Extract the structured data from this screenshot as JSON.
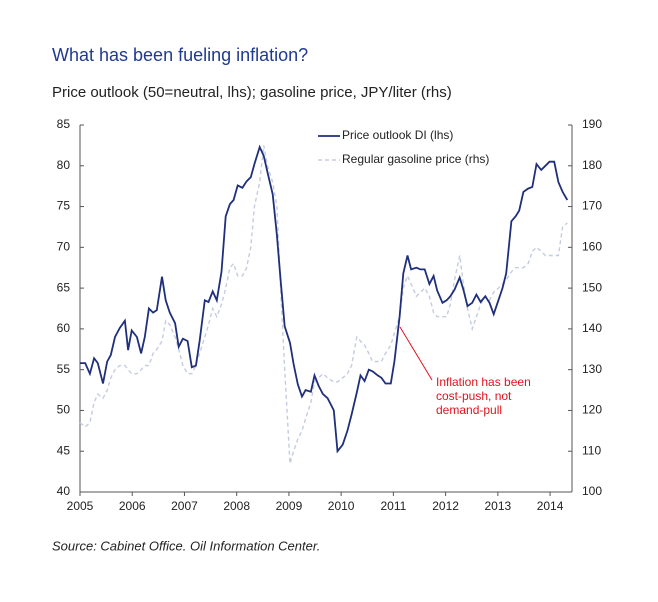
{
  "chart_data": {
    "type": "line",
    "title": "What has been fueling inflation?",
    "subtitle": "Price outlook (50=neutral, lhs); gasoline price, JPY/liter (rhs)",
    "source": "Source: Cabinet Office. Oil Information Center.",
    "annotation": [
      "Inflation has been",
      "cost-push, not",
      "demand-pull"
    ],
    "annotation_color": "#e0141e",
    "legend": "top",
    "x": [
      2005.0,
      2005.1,
      2005.19,
      2005.27,
      2005.34,
      2005.44,
      2005.52,
      2005.59,
      2005.67,
      2005.76,
      2005.86,
      2005.92,
      2005.99,
      2006.09,
      2006.17,
      2006.24,
      2006.32,
      2006.4,
      2006.47,
      2006.57,
      2006.64,
      2006.72,
      2006.82,
      2006.89,
      2006.97,
      2007.06,
      2007.14,
      2007.22,
      2007.29,
      2007.39,
      2007.46,
      2007.54,
      2007.62,
      2007.71,
      2007.79,
      2007.87,
      2007.94,
      2008.02,
      2008.11,
      2008.19,
      2008.27,
      2008.34,
      2008.44,
      2008.52,
      2008.59,
      2008.69,
      2008.77,
      2008.84,
      2008.92,
      2009.02,
      2009.09,
      2009.17,
      2009.25,
      2009.32,
      2009.42,
      2009.49,
      2009.57,
      2009.65,
      2009.74,
      2009.86,
      2009.93,
      2010.03,
      2010.12,
      2010.2,
      2010.3,
      2010.37,
      2010.45,
      2010.53,
      2010.6,
      2010.7,
      2010.77,
      2010.85,
      2010.95,
      2011.02,
      2011.12,
      2011.19,
      2011.27,
      2011.34,
      2011.44,
      2011.52,
      2011.6,
      2011.69,
      2011.77,
      2011.84,
      2011.94,
      2012.02,
      2012.09,
      2012.17,
      2012.27,
      2012.34,
      2012.42,
      2012.51,
      2012.59,
      2012.67,
      2012.76,
      2012.84,
      2012.92,
      2013.01,
      2013.09,
      2013.16,
      2013.26,
      2013.34,
      2013.41,
      2013.49,
      2013.58,
      2013.66,
      2013.74,
      2013.83,
      2013.91,
      2013.99,
      2014.08,
      2014.16,
      2014.24,
      2014.33
    ],
    "series": [
      {
        "name": "Price outlook DI (lhs)",
        "color": "#1f2f7a",
        "dash": false,
        "axis": "y",
        "values": [
          55.8,
          55.8,
          54.5,
          56.4,
          55.8,
          53.3,
          56,
          56.8,
          59,
          60.1,
          61,
          57.4,
          59.8,
          59,
          57,
          59,
          62.5,
          62,
          62.3,
          66.4,
          63.5,
          62,
          60.7,
          57.8,
          58.8,
          58.5,
          55.3,
          55.5,
          58.5,
          63.5,
          63.3,
          64.6,
          63.5,
          67,
          73.8,
          75.3,
          75.8,
          77.6,
          77.3,
          78.1,
          78.6,
          80.2,
          82.3,
          81.2,
          79.2,
          76.5,
          71.5,
          66,
          60.3,
          58.3,
          55.7,
          53.2,
          51.7,
          52.5,
          52.3,
          54.3,
          53,
          52,
          51.5,
          50,
          45,
          45.8,
          47.5,
          49.5,
          52.2,
          54.3,
          53.6,
          55,
          54.8,
          54.3,
          54,
          53.3,
          53.3,
          56,
          61.5,
          66.8,
          69,
          67.3,
          67.5,
          67.3,
          67.3,
          65.5,
          66.5,
          64.7,
          63.2,
          63.5,
          64,
          64.8,
          66.3,
          64.8,
          62.8,
          63.2,
          64.2,
          63.3,
          64,
          63.2,
          61.8,
          63.5,
          65,
          66.8,
          73.2,
          73.8,
          74.5,
          76.8,
          77.2,
          77.4,
          80.2,
          79.5,
          80,
          80.5,
          80.5,
          78,
          76.8,
          75.8
        ]
      },
      {
        "name": "Regular gasoline price (rhs)",
        "color": "#c5cce0",
        "dash": true,
        "axis": "y2",
        "values": [
          117,
          116,
          117,
          122,
          124,
          123,
          125,
          128,
          130,
          131,
          131,
          130,
          129,
          129,
          130,
          131,
          131,
          134,
          135,
          137,
          142,
          141,
          138,
          135,
          131,
          129,
          129,
          131,
          134,
          138,
          141,
          145,
          143,
          146,
          150,
          155,
          156,
          153,
          153,
          155,
          160,
          170,
          176,
          185,
          180,
          176,
          170,
          150,
          130,
          107,
          110,
          113,
          115,
          118,
          122,
          127,
          128,
          129,
          128,
          127,
          127,
          128,
          129,
          131,
          138,
          137,
          136,
          134,
          132,
          132,
          132,
          134,
          136,
          139,
          143,
          150,
          153,
          151,
          148,
          149,
          150,
          148,
          144,
          143,
          143,
          143,
          146,
          152,
          158,
          151,
          145,
          140,
          143,
          146,
          148,
          147,
          149,
          150,
          151,
          152,
          154,
          155,
          155,
          155,
          156,
          159,
          160,
          159,
          158,
          158,
          158,
          158,
          165,
          166
        ]
      }
    ],
    "xlim": [
      2005,
      2014.42
    ],
    "xticks": [
      2005,
      2006,
      2007,
      2008,
      2009,
      2010,
      2011,
      2012,
      2013,
      2014
    ],
    "ylim": [
      40,
      85
    ],
    "yticks": [
      40,
      45,
      50,
      55,
      60,
      65,
      70,
      75,
      80,
      85
    ],
    "y2lim": [
      100,
      190
    ],
    "y2ticks": [
      100,
      110,
      120,
      130,
      140,
      150,
      160,
      170,
      180,
      190
    ]
  }
}
